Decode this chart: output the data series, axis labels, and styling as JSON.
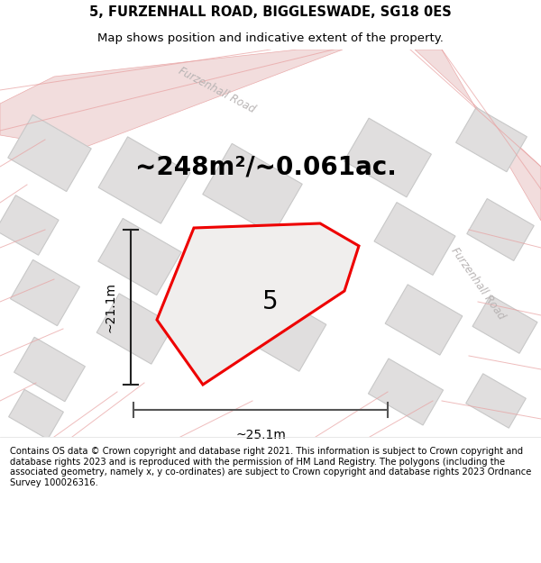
{
  "title": "5, FURZENHALL ROAD, BIGGLESWADE, SG18 0ES",
  "subtitle": "Map shows position and indicative extent of the property.",
  "area_label": "~248m²/~0.061ac.",
  "dim_vertical": "~21.1m",
  "dim_horizontal": "~25.1m",
  "plot_number": "5",
  "copyright_text": "Contains OS data © Crown copyright and database right 2021. This information is subject to Crown copyright and database rights 2023 and is reproduced with the permission of HM Land Registry. The polygons (including the associated geometry, namely x, y co-ordinates) are subject to Crown copyright and database rights 2023 Ordnance Survey 100026316.",
  "bg_color": "#ffffff",
  "map_bg": "#f7f5f5",
  "plot_fill": "#f0eeed",
  "road_line_color": "#e8a0a0",
  "road_fill_color": "#f0d8d8",
  "plot_edge_color": "#ee0000",
  "building_fill": "#e0dede",
  "building_edge": "#c8c8c8",
  "dim_line_color": "#222222",
  "hdim_line_color": "#555555",
  "road_label_color": "#b8b4b4",
  "title_fontsize": 10.5,
  "subtitle_fontsize": 9.5,
  "area_fontsize": 20,
  "plot_num_fontsize": 20,
  "dim_fontsize": 10,
  "copyright_fontsize": 7.2
}
